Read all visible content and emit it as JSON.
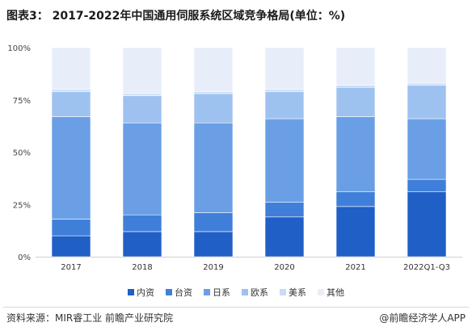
{
  "title": "图表3： 2017-2022年中国通用伺服系统区域竞争格局(单位：%)",
  "footer": {
    "source": "资料来源：MIR睿工业 前瞻产业研究院",
    "brand": "@前瞻经济学人APP"
  },
  "chart_data": {
    "type": "bar",
    "stacked": true,
    "categories": [
      "2017",
      "2018",
      "2019",
      "2020",
      "2021",
      "2022Q1-Q3"
    ],
    "y_ticks": [
      "0%",
      "25%",
      "50%",
      "75%",
      "100%"
    ],
    "ylim": [
      0,
      100
    ],
    "legend_position": "bottom",
    "series": [
      {
        "name": "内资",
        "color": "#1f5fc6",
        "values": [
          10,
          12,
          12,
          19,
          24,
          31
        ]
      },
      {
        "name": "台资",
        "color": "#3f7fd9",
        "values": [
          8,
          8,
          9,
          7,
          7,
          6
        ]
      },
      {
        "name": "日系",
        "color": "#6a9fe6",
        "values": [
          49,
          44,
          43,
          40,
          36,
          29
        ]
      },
      {
        "name": "欧系",
        "color": "#9ec2f0",
        "values": [
          12,
          13,
          14,
          13,
          14,
          16
        ]
      },
      {
        "name": "美系",
        "color": "#c9dcf6",
        "values": [
          1,
          1,
          1,
          1,
          1,
          1
        ]
      },
      {
        "name": "其他",
        "color": "#e7eefa",
        "values": [
          20,
          22,
          21,
          20,
          18,
          17
        ]
      }
    ]
  }
}
